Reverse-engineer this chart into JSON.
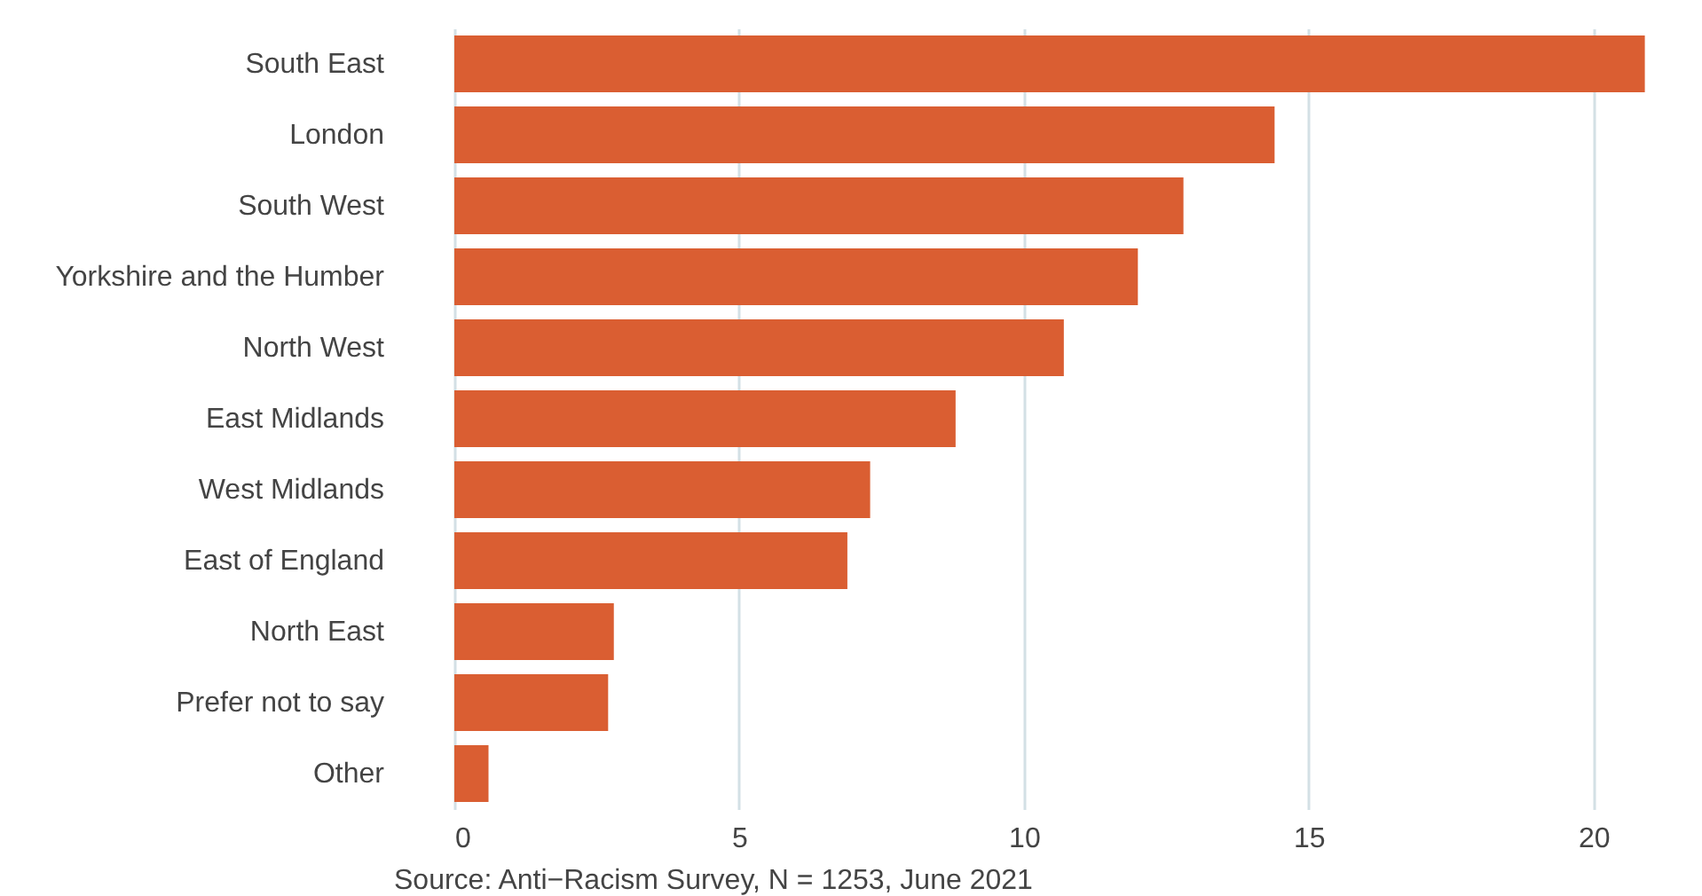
{
  "chart_data": {
    "type": "bar",
    "orientation": "horizontal",
    "categories": [
      "South East",
      "London",
      "South West",
      "Yorkshire and the Humber",
      "North West",
      "East Midlands",
      "West Midlands",
      "East of England",
      "North East",
      "Prefer not to say",
      "Other"
    ],
    "values": [
      20.9,
      14.4,
      12.8,
      12.0,
      10.7,
      8.8,
      7.3,
      6.9,
      2.8,
      2.7,
      0.6
    ],
    "color": "#da5e32",
    "xlim": [
      0,
      21
    ],
    "xticks": [
      0,
      5,
      10,
      15,
      20
    ],
    "grid": "x",
    "annotations": [
      "Source: Anti−Racism Survey, N = 1253, June 2021"
    ]
  }
}
